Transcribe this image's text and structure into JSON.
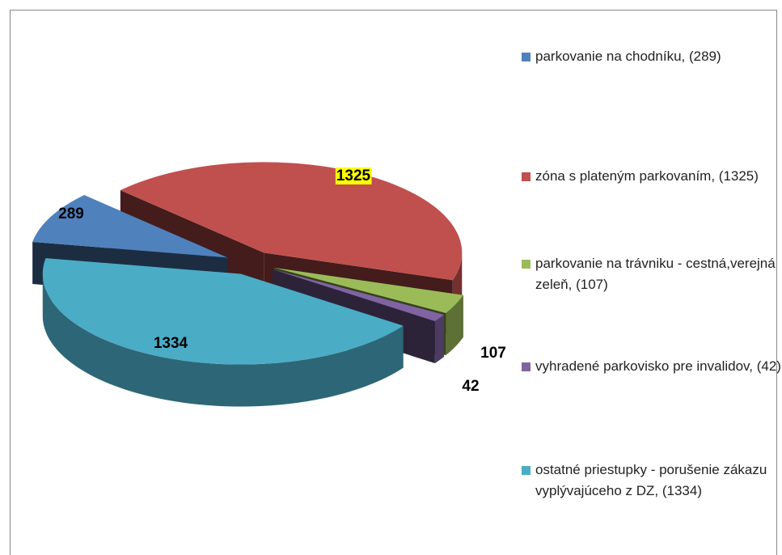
{
  "chart_data": {
    "type": "pie3d",
    "categories": [
      "parkovanie na chodníku, (289)",
      "zóna s plateným parkovaním, (1325)",
      "parkovanie na trávniku - cestná,verejná zeleň, (107)",
      "vyhradené parkovisko pre invalidov, (42)",
      "ostatné priestupky  - porušenie zákazu vyplývajúceho z DZ, (1334)"
    ],
    "values": [
      289,
      1325,
      107,
      42,
      1334
    ],
    "colors": [
      "#4f81bd",
      "#c0504d",
      "#9bbb59",
      "#8064a2",
      "#4bacc6"
    ],
    "legend": "right"
  }
}
